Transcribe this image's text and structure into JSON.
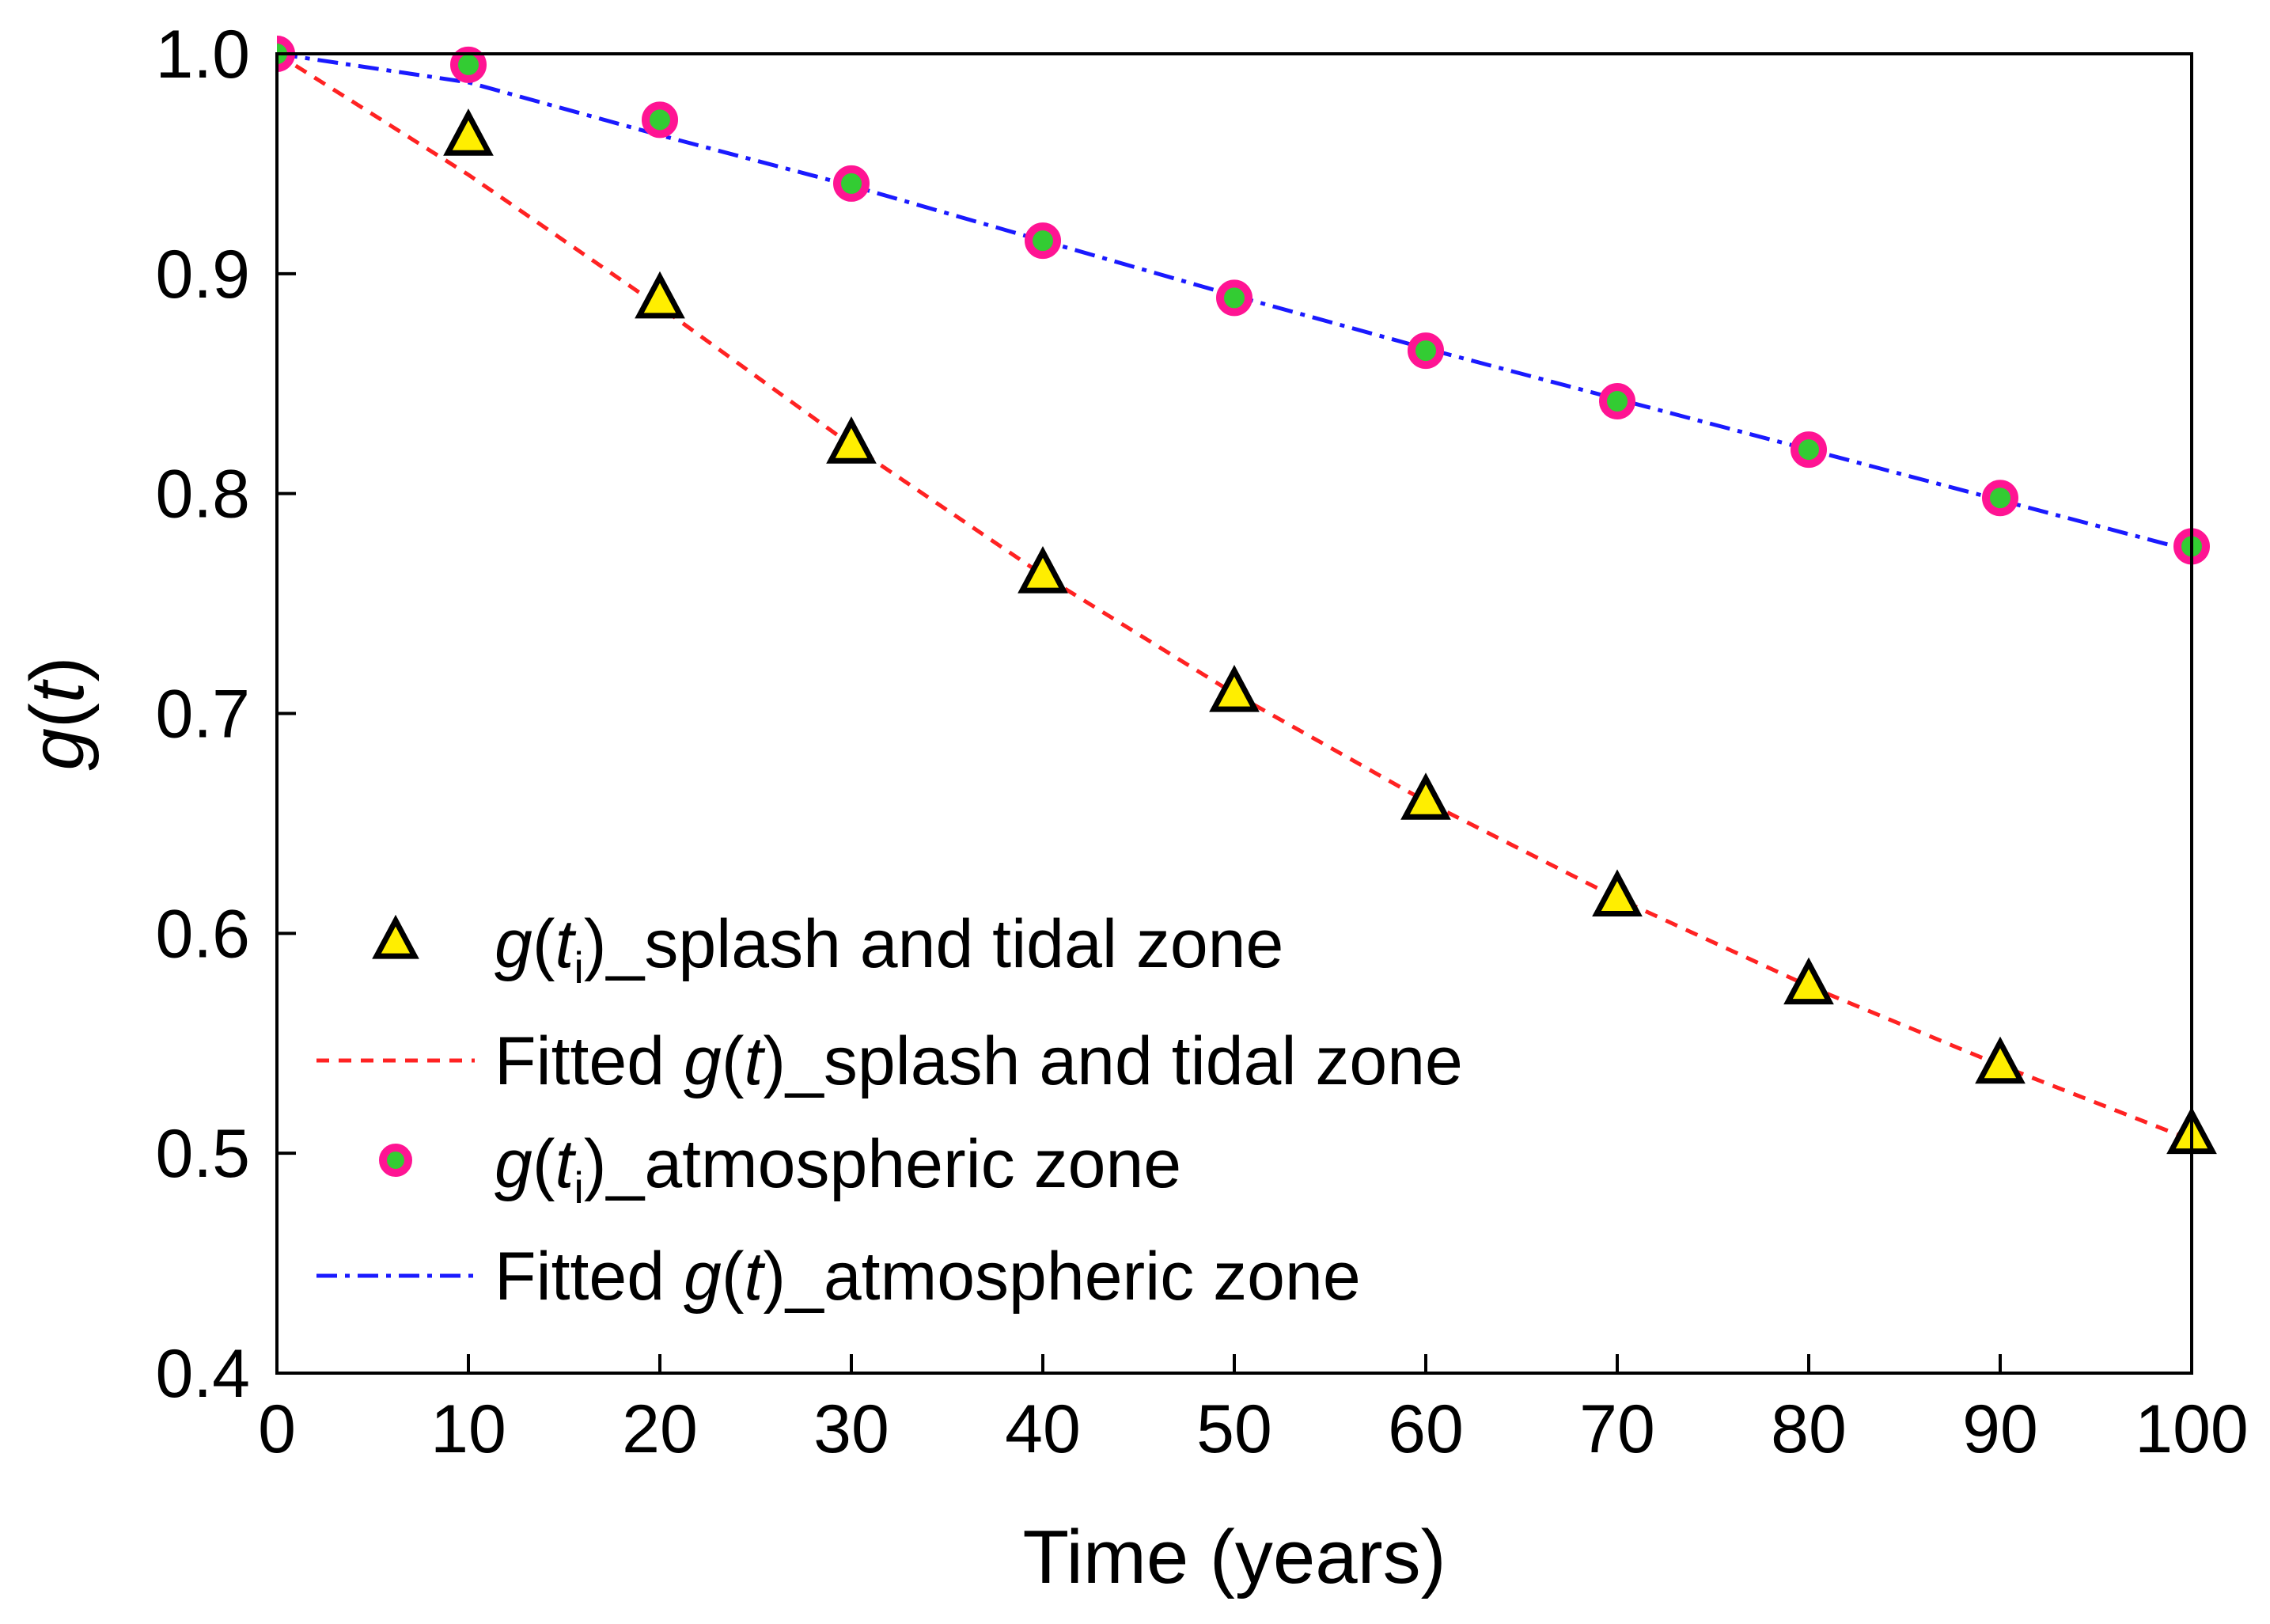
{
  "chart_data": {
    "type": "line",
    "title": "",
    "xlabel": "Time (years)",
    "ylabel": {
      "fn": "g",
      "open": "(",
      "var": "t",
      "close": ")"
    },
    "xlim": [
      0,
      100
    ],
    "ylim": [
      0.4,
      1.0
    ],
    "xticks": [
      0,
      10,
      20,
      30,
      40,
      50,
      60,
      70,
      80,
      90,
      100
    ],
    "xtick_labels": [
      "0",
      "10",
      "20",
      "30",
      "40",
      "50",
      "60",
      "70",
      "80",
      "90",
      "100"
    ],
    "yticks": [
      0.4,
      0.5,
      0.6,
      0.7,
      0.8,
      0.9,
      1.0
    ],
    "ytick_labels": [
      "0.4",
      "0.5",
      "0.6",
      "0.7",
      "0.8",
      "0.9",
      "1.0"
    ],
    "grid": false,
    "legend_position": "bottom-left",
    "series": [
      {
        "key": "splash_points",
        "name": "g(ti)_splash and tidal zone",
        "kind": "scatter",
        "marker": "triangle",
        "fill": "#ffee00",
        "stroke": "#000000",
        "x": [
          10,
          20,
          30,
          40,
          50,
          60,
          70,
          80,
          90,
          100
        ],
        "y": [
          0.962,
          0.888,
          0.822,
          0.763,
          0.709,
          0.66,
          0.616,
          0.576,
          0.54,
          0.508
        ]
      },
      {
        "key": "splash_fit",
        "name": "Fitted g(t)_splash and tidal zone",
        "kind": "line",
        "dash": "dashed",
        "color": "#ff2222",
        "x": [
          0,
          10,
          20,
          30,
          40,
          50,
          60,
          70,
          80,
          90,
          100
        ],
        "y": [
          1.0,
          0.945,
          0.885,
          0.822,
          0.763,
          0.709,
          0.66,
          0.616,
          0.576,
          0.54,
          0.506
        ]
      },
      {
        "key": "atmo_points",
        "name": "g(ti)_atmospheric zone",
        "kind": "scatter",
        "marker": "circle",
        "fill": "#33cc33",
        "stroke": "#ff1493",
        "x": [
          0,
          10,
          20,
          30,
          40,
          50,
          60,
          70,
          80,
          90,
          100
        ],
        "y": [
          1.0,
          0.995,
          0.97,
          0.941,
          0.915,
          0.889,
          0.865,
          0.842,
          0.82,
          0.798,
          0.776
        ]
      },
      {
        "key": "atmo_fit",
        "name": "Fitted g(t)_atmospheric zone",
        "kind": "line",
        "dash": "dashdot",
        "color": "#1a1aff",
        "x": [
          0,
          10,
          20,
          30,
          40,
          50,
          60,
          70,
          80,
          90,
          100
        ],
        "y": [
          1.0,
          0.987,
          0.963,
          0.94,
          0.915,
          0.89,
          0.866,
          0.843,
          0.82,
          0.797,
          0.774
        ]
      }
    ],
    "legend": [
      {
        "series": "splash_points",
        "fn": "g",
        "open": "(",
        "var": "t",
        "sub": "i",
        "close": ")",
        "rest": "_splash and tidal zone"
      },
      {
        "series": "splash_fit",
        "pre": "Fitted ",
        "fn": "g",
        "open": "(",
        "var": "t",
        "sub": "",
        "close": ")",
        "rest": "_splash and tidal zone"
      },
      {
        "series": "atmo_points",
        "fn": "g",
        "open": "(",
        "var": "t",
        "sub": "i",
        "close": ")",
        "rest": "_atmospheric zone"
      },
      {
        "series": "atmo_fit",
        "pre": "Fitted ",
        "fn": "g",
        "open": "(",
        "var": "t",
        "sub": "",
        "close": ")",
        "rest": "_atmospheric zone"
      }
    ]
  }
}
